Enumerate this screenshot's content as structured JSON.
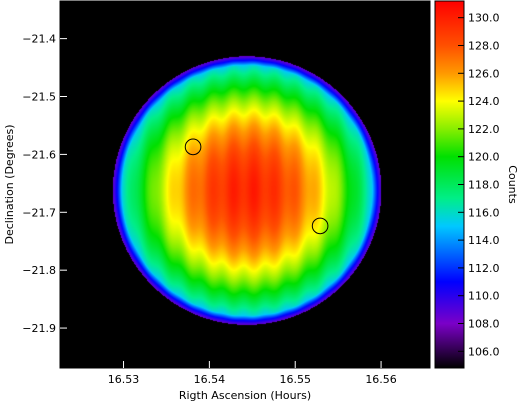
{
  "chart_data": {
    "type": "heatmap",
    "xlabel": "Rigth Ascension (Hours)",
    "ylabel": "Declination (Degrees)",
    "colorbar_label": "Counts",
    "xlim": [
      16.5226,
      16.5657
    ],
    "ylim": [
      -21.969,
      -21.335
    ],
    "x_ticks": [
      16.53,
      16.54,
      16.55,
      16.56
    ],
    "x_tick_labels": [
      "16.53",
      "16.54",
      "16.55",
      "16.56"
    ],
    "y_ticks": [
      -21.4,
      -21.5,
      -21.6,
      -21.7,
      -21.8,
      -21.9
    ],
    "y_tick_labels": [
      "−21.4",
      "−21.5",
      "−21.6",
      "−21.7",
      "−21.8",
      "−21.9"
    ],
    "colorbar_range": [
      104.8,
      131.2
    ],
    "colorbar_ticks": [
      106,
      108,
      110,
      112,
      114,
      116,
      118,
      120,
      122,
      124,
      126,
      128,
      130
    ],
    "colorbar_tick_labels": [
      "106.0",
      "108.0",
      "110.0",
      "112.0",
      "114.0",
      "116.0",
      "118.0",
      "120.0",
      "122.0",
      "124.0",
      "126.0",
      "128.0",
      "130.0"
    ],
    "field": {
      "shape": "circle",
      "center": [
        16.5444,
        -21.6625
      ],
      "radius_dec_deg": 0.232,
      "center_value": 129.8,
      "edge_value": 113.5,
      "outside_value": 104.8
    },
    "circles": [
      {
        "center": [
          16.5381,
          -21.587
        ],
        "radius_dec_deg": 0.0135
      },
      {
        "center": [
          16.5529,
          -21.7235
        ],
        "radius_dec_deg": 0.0135
      }
    ],
    "colormap": [
      {
        "value": 104.8,
        "color": "#000000"
      },
      {
        "value": 108.0,
        "color": "#7b00c8"
      },
      {
        "value": 111.0,
        "color": "#0000ff"
      },
      {
        "value": 115.0,
        "color": "#00c8ff"
      },
      {
        "value": 117.0,
        "color": "#00ee88"
      },
      {
        "value": 120.0,
        "color": "#00e000"
      },
      {
        "value": 122.0,
        "color": "#88ee00"
      },
      {
        "value": 124.0,
        "color": "#ffff00"
      },
      {
        "value": 126.0,
        "color": "#ff9900"
      },
      {
        "value": 128.0,
        "color": "#ff5000"
      },
      {
        "value": 131.2,
        "color": "#ff0000"
      }
    ]
  }
}
